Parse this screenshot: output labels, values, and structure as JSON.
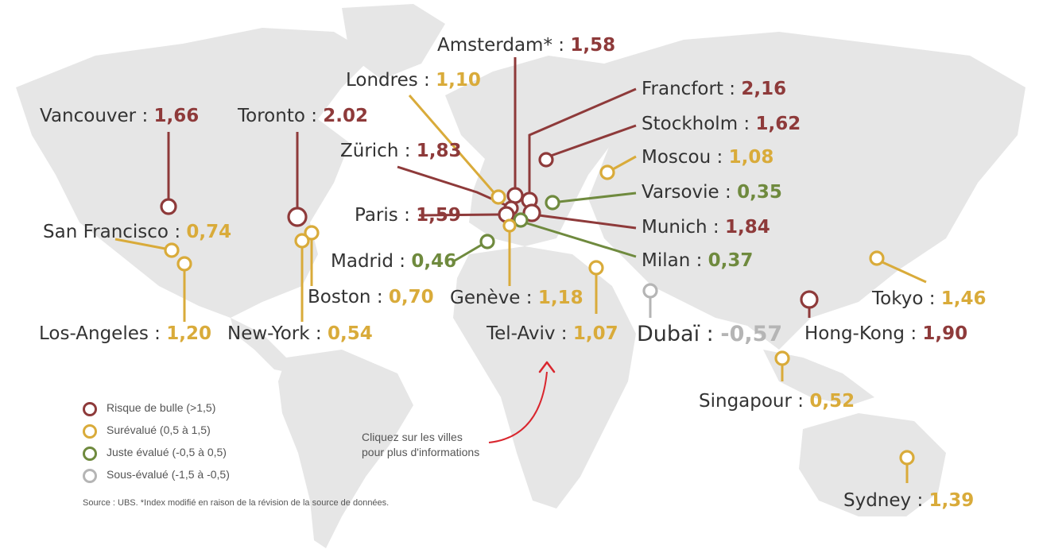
{
  "categories": {
    "bubble": {
      "label": "Risque de bulle (>1,5)",
      "color": "#8e3a3a"
    },
    "over": {
      "label": "Surévalué (0,5  à  1,5)",
      "color": "#d9ab3a"
    },
    "fair": {
      "label": "Juste évalué (-0,5 à 0,5)",
      "color": "#6f8a3e"
    },
    "under": {
      "label": "Sous-évalué (-1,5 à -0,5)",
      "color": "#b5b5b5"
    }
  },
  "cities": [
    {
      "name": "Amsterdam*",
      "value": "1,58",
      "category": "bubble"
    },
    {
      "name": "Londres",
      "value": "1,10",
      "category": "over"
    },
    {
      "name": "Francfort",
      "value": "2,16",
      "category": "bubble"
    },
    {
      "name": "Vancouver",
      "value": "1,66",
      "category": "bubble"
    },
    {
      "name": "Toronto",
      "value": "2.02",
      "category": "bubble"
    },
    {
      "name": "Stockholm",
      "value": "1,62",
      "category": "bubble"
    },
    {
      "name": "Zürich",
      "value": "1,83",
      "category": "bubble"
    },
    {
      "name": "Moscou",
      "value": "1,08",
      "category": "over"
    },
    {
      "name": "Varsovie",
      "value": "0,35",
      "category": "fair"
    },
    {
      "name": "Paris",
      "value": "1,59",
      "category": "bubble"
    },
    {
      "name": "San Francisco",
      "value": "0,74",
      "category": "over"
    },
    {
      "name": "Munich",
      "value": "1,84",
      "category": "bubble"
    },
    {
      "name": "Madrid",
      "value": "0,46",
      "category": "fair"
    },
    {
      "name": "Milan",
      "value": "0,37",
      "category": "fair"
    },
    {
      "name": "Boston",
      "value": "0,70",
      "category": "over"
    },
    {
      "name": "Genève",
      "value": "1,18",
      "category": "over"
    },
    {
      "name": "Tokyo",
      "value": "1,46",
      "category": "over"
    },
    {
      "name": "Los-Angeles",
      "value": "1,20",
      "category": "over"
    },
    {
      "name": "New-York",
      "value": "0,54",
      "category": "over"
    },
    {
      "name": "Tel-Aviv",
      "value": "1,07",
      "category": "over"
    },
    {
      "name": "Dubaï",
      "value": "-0,57",
      "category": "under"
    },
    {
      "name": "Hong-Kong",
      "value": "1,90",
      "category": "bubble"
    },
    {
      "name": "Singapour",
      "value": "0,52",
      "category": "over"
    },
    {
      "name": "Sydney",
      "value": "1,39",
      "category": "over"
    }
  ],
  "legend_order": [
    "bubble",
    "over",
    "fair",
    "under"
  ],
  "hint": {
    "line1": "Cliquez sur les villes",
    "line2": "pour plus d'informations",
    "arrow_color": "#d9262e"
  },
  "source": "Source : UBS. *Index modifié en raison de la révision de la source de données.",
  "map_color": "#e6e6e6"
}
